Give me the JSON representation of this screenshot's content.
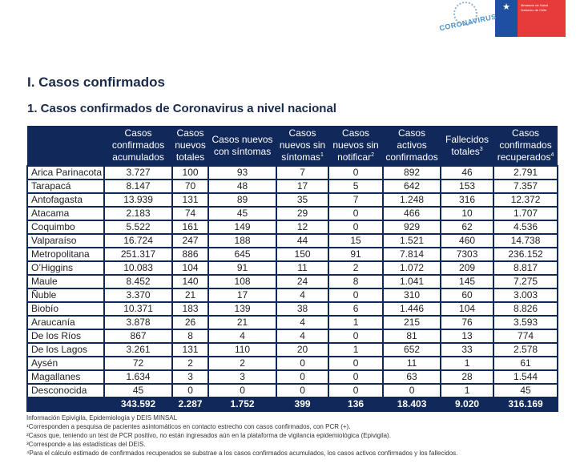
{
  "logos": {
    "campaign": "CORONAVIRUS",
    "ministry": "Ministerio de Salud",
    "government": "Gobierno de Chile"
  },
  "section_title": "I. Casos confirmados",
  "subtitle": "1. Casos confirmados de Coronavirus a nivel nacional",
  "table": {
    "headers": [
      {
        "text": "",
        "sup": ""
      },
      {
        "text": "Casos confirmados acumulados",
        "sup": ""
      },
      {
        "text": "Casos nuevos totales",
        "sup": ""
      },
      {
        "text": "Casos nuevos con síntomas",
        "sup": ""
      },
      {
        "text": "Casos nuevos sin síntomas",
        "sup": "1"
      },
      {
        "text": "Casos nuevos sin notificar",
        "sup": "2"
      },
      {
        "text": "Casos activos confirmados",
        "sup": ""
      },
      {
        "text": "Fallecidos totales",
        "sup": "3"
      },
      {
        "text": "Casos confirmados recuperados",
        "sup": "4"
      }
    ],
    "rows": [
      [
        "Arica Parinacota",
        "3.727",
        "100",
        "93",
        "7",
        "0",
        "892",
        "46",
        "2.791"
      ],
      [
        "Tarapacá",
        "8.147",
        "70",
        "48",
        "17",
        "5",
        "642",
        "153",
        "7.357"
      ],
      [
        "Antofagasta",
        "13.939",
        "131",
        "89",
        "35",
        "7",
        "1.248",
        "316",
        "12.372"
      ],
      [
        "Atacama",
        "2.183",
        "74",
        "45",
        "29",
        "0",
        "466",
        "10",
        "1.707"
      ],
      [
        "Coquimbo",
        "5.522",
        "161",
        "149",
        "12",
        "0",
        "929",
        "62",
        "4.536"
      ],
      [
        "Valparaíso",
        "16.724",
        "247",
        "188",
        "44",
        "15",
        "1.521",
        "460",
        "14.738"
      ],
      [
        "Metropolitana",
        "251.317",
        "886",
        "645",
        "150",
        "91",
        "7.814",
        "7303",
        "236.152"
      ],
      [
        "O’Higgins",
        "10.083",
        "104",
        "91",
        "11",
        "2",
        "1.072",
        "209",
        "8.817"
      ],
      [
        "Maule",
        "8.452",
        "140",
        "108",
        "24",
        "8",
        "1.041",
        "145",
        "7.275"
      ],
      [
        "Ñuble",
        "3.370",
        "21",
        "17",
        "4",
        "0",
        "310",
        "60",
        "3.003"
      ],
      [
        "Biobío",
        "10.371",
        "183",
        "139",
        "38",
        "6",
        "1.446",
        "104",
        "8.826"
      ],
      [
        "Araucanía",
        "3.878",
        "26",
        "21",
        "4",
        "1",
        "215",
        "76",
        "3.593"
      ],
      [
        "De los Ríos",
        "867",
        "8",
        "4",
        "4",
        "0",
        "81",
        "13",
        "774"
      ],
      [
        "De los Lagos",
        "3.261",
        "131",
        "110",
        "20",
        "1",
        "652",
        "33",
        "2.578"
      ],
      [
        "Aysén",
        "72",
        "2",
        "2",
        "0",
        "0",
        "11",
        "1",
        "61"
      ],
      [
        "Magallanes",
        "1.634",
        "3",
        "3",
        "0",
        "0",
        "63",
        "28",
        "1.544"
      ],
      [
        "Desconocida",
        "45",
        "0",
        "0",
        "0",
        "0",
        "0",
        "1",
        "45"
      ]
    ],
    "total": [
      "",
      "343.592",
      "2.287",
      "1.752",
      "399",
      "136",
      "18.403",
      "9.020",
      "316.169"
    ]
  },
  "notes": [
    "Información Epivigila, Epidemiología y DEIS MINSAL",
    "¹Corresponden a pesquisa de pacientes asintomáticos en contacto estrecho con casos confirmados, con PCR (+).",
    "²Casos que, teniendo un test de PCR positivo, no están ingresados aún en la plataforma de vigilancia epidemiológica (Epivigila).",
    "³Corresponde a las estadísticas del DEIS.",
    "⁴Para el cálculo estimado de confirmados recuperados se substrae a los casos confirmados acumulados, los casos activos confirmados y los fallecidos."
  ]
}
